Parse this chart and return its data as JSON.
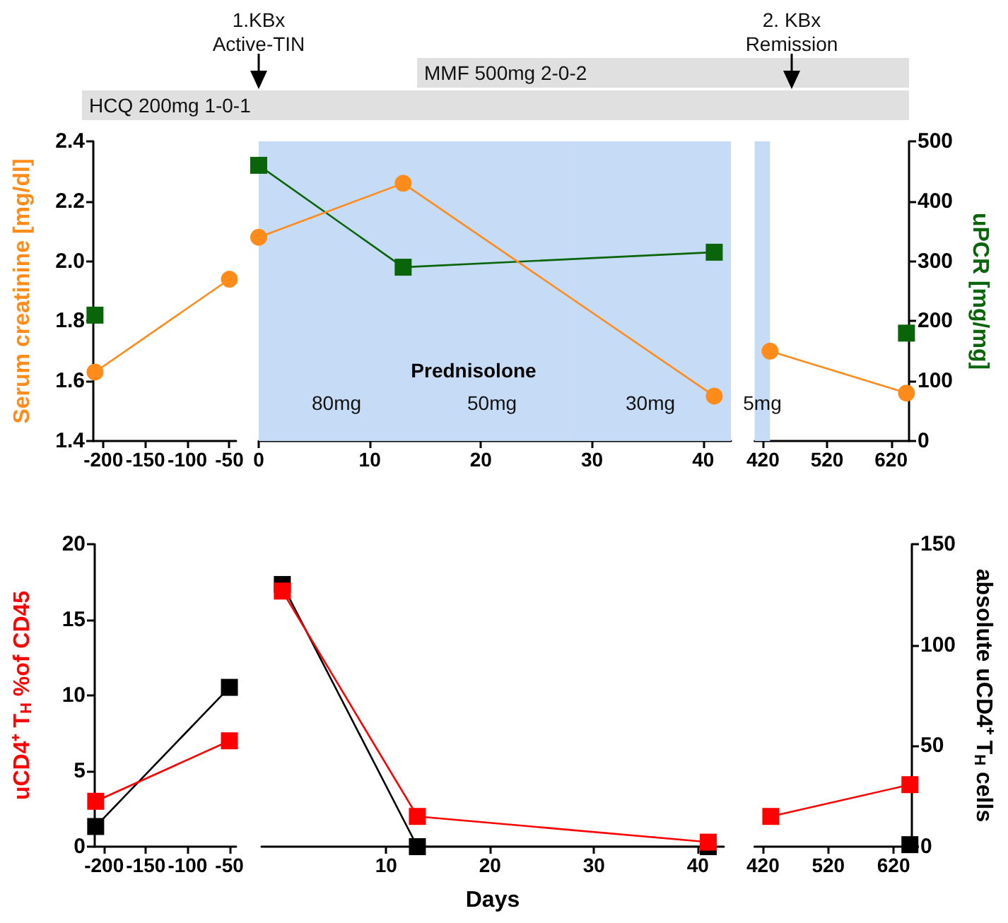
{
  "chart_data": [
    {
      "type": "line",
      "ylabel": "Serum creatinine [mg/dl]",
      "xlim": [
        -212,
        -42
      ],
      "xticks": [
        -200,
        -150,
        -100,
        -50
      ],
      "ylim": [
        1.4,
        2.4
      ],
      "yticks": [
        1.4,
        1.6,
        1.8,
        {
          "value": 2,
          "label": "2.0"
        },
        2.2,
        2.4
      ],
      "y2lim": [
        0,
        500
      ],
      "grid": false,
      "line_style": "solid",
      "series": [
        {
          "color": "#ff8c1a",
          "marker": "circle",
          "x": [
            -210,
            -50
          ],
          "values": [
            1.63,
            1.94
          ]
        },
        {
          "color": "#0a640a",
          "marker": "square",
          "axis": "y2",
          "x": [
            -210
          ],
          "values": [
            210
          ]
        }
      ],
      "annotations": [
        "HCQ 200mg 1-0-1"
      ]
    },
    {
      "type": "line",
      "xlim": [
        0,
        42.5
      ],
      "xticks": [
        0,
        10,
        20,
        30,
        40
      ],
      "ylim": [
        1.4,
        2.4
      ],
      "y2lim": [
        0,
        500
      ],
      "tick_labels": "x",
      "grid": false,
      "line_style": "solid",
      "series": [
        {
          "color": "#ff8c1a",
          "marker": "circle",
          "x": [
            0,
            13,
            41
          ],
          "values": [
            2.08,
            2.26,
            1.55
          ]
        },
        {
          "color": "#0a640a",
          "marker": "square",
          "axis": "y2",
          "x": [
            0,
            13,
            41
          ],
          "values": [
            460,
            290,
            315
          ]
        }
      ],
      "bands": [
        {
          "axis": "x",
          "from": 0,
          "to": 14,
          "label": "80mg",
          "color": "#c6dbf5"
        },
        {
          "axis": "x",
          "from": 14,
          "to": 28,
          "label": "50mg",
          "color": "#c6dbf5"
        },
        {
          "axis": "x",
          "from": 28,
          "to": 42.5,
          "label": "30mg",
          "color": "#c6dbf5"
        }
      ],
      "annotations": [
        "1.KBx\nActive-TIN",
        "MMF 500mg 2-0-2",
        "Prednisolone"
      ]
    },
    {
      "type": "line",
      "y2label": "uPCR [mg/mg]",
      "xlim": [
        407,
        648
      ],
      "xticks": [
        420,
        520,
        620
      ],
      "ylim": [
        1.4,
        2.4
      ],
      "y2lim": [
        0,
        500
      ],
      "y2ticks": [
        0,
        100,
        200,
        300,
        400,
        500
      ],
      "grid": false,
      "line_style": "solid",
      "series": [
        {
          "color": "#ff8c1a",
          "marker": "circle",
          "x": [
            431,
            644
          ],
          "values": [
            1.7,
            1.56
          ]
        },
        {
          "color": "#0a640a",
          "marker": "square",
          "axis": "y2",
          "x": [
            644
          ],
          "values": [
            180
          ]
        }
      ],
      "bands": [
        {
          "axis": "x",
          "from": 407,
          "to": 431,
          "label": "5mg",
          "color": "#c6dbf5"
        }
      ],
      "annotations": [
        "2. KBx\nRemission"
      ]
    },
    {
      "type": "line",
      "ylabel": "uCD4⁺ T$_{H}$ %of CD45",
      "xlim": [
        -212,
        -42
      ],
      "xticks": [
        -200,
        -150,
        -100,
        -50
      ],
      "ylim": [
        0,
        20
      ],
      "yticks": [
        0,
        5,
        10,
        15,
        20
      ],
      "y2lim": [
        0,
        150
      ],
      "grid": false,
      "line_style": "solid",
      "marker": "square",
      "series": [
        {
          "color": "#ff0000",
          "x": [
            -210,
            -50
          ],
          "values": [
            3.0,
            7.0
          ]
        },
        {
          "color": "#000000",
          "axis": "y2",
          "x": [
            -210,
            -50
          ],
          "values": [
            10,
            79
          ]
        }
      ]
    },
    {
      "type": "line",
      "xlabel": "Days",
      "xlim": [
        -2,
        42.5
      ],
      "xticks": [
        10,
        20,
        30,
        40
      ],
      "ylim": [
        0,
        20
      ],
      "y2lim": [
        0,
        150
      ],
      "tick_labels": "x",
      "grid": false,
      "line_style": "solid",
      "marker": "square",
      "series": [
        {
          "color": "#ff0000",
          "x": [
            0,
            13,
            41
          ],
          "values": [
            16.9,
            2.0,
            0.3
          ]
        },
        {
          "color": "#000000",
          "axis": "y2",
          "x": [
            0,
            13,
            41
          ],
          "values": [
            130,
            0,
            0
          ]
        }
      ]
    },
    {
      "type": "line",
      "y2label": "absolute uCD4⁺ T$_{H}$ cells",
      "xlim": [
        407,
        648
      ],
      "xticks": [
        420,
        520,
        620
      ],
      "ylim": [
        0,
        20
      ],
      "y2lim": [
        0,
        150
      ],
      "y2ticks": [
        0,
        50,
        100,
        150
      ],
      "grid": false,
      "line_style": "solid",
      "marker": "square",
      "series": [
        {
          "color": "#ff0000",
          "x": [
            432,
            645
          ],
          "values": [
            2.0,
            4.1
          ]
        },
        {
          "color": "#000000",
          "axis": "y2",
          "x": [
            645
          ],
          "values": [
            1
          ]
        }
      ]
    }
  ]
}
